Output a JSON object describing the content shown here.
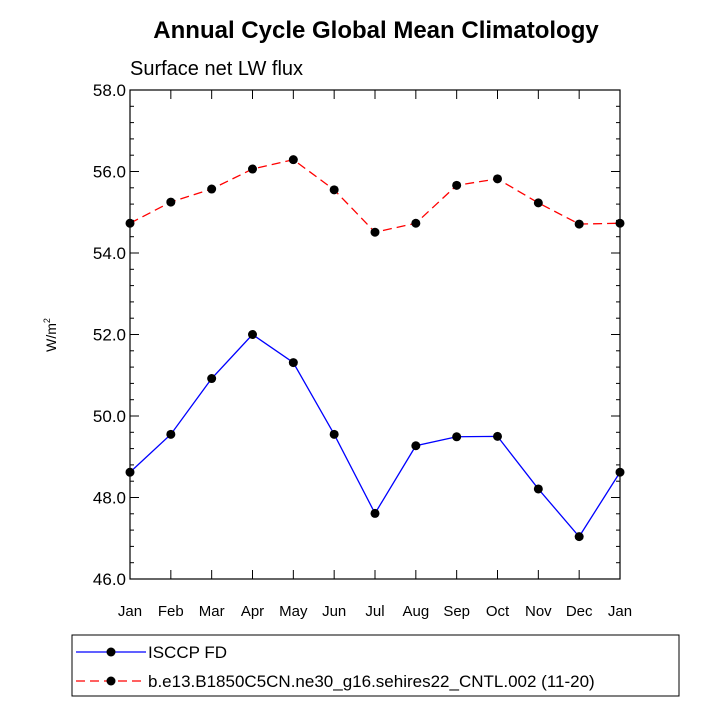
{
  "chart_data": {
    "type": "line",
    "title": "Annual Cycle Global Mean Climatology",
    "subtitle": "Surface net LW flux",
    "xlabel": "",
    "ylabel_base": "W/m",
    "ylabel_sup": "2",
    "categories": [
      "Jan",
      "Feb",
      "Mar",
      "Apr",
      "May",
      "Jun",
      "Jul",
      "Aug",
      "Sep",
      "Oct",
      "Nov",
      "Dec",
      "Jan"
    ],
    "ylim": [
      46.0,
      58.0
    ],
    "yticks": [
      "46.0",
      "48.0",
      "50.0",
      "52.0",
      "54.0",
      "56.0",
      "58.0"
    ],
    "ytick_values": [
      46,
      48,
      50,
      52,
      54,
      56,
      58
    ],
    "grid": false,
    "legend_position": "bottom",
    "series": [
      {
        "name": "ISCCP FD",
        "color": "#0000ff",
        "dash": "solid",
        "values": [
          48.62,
          49.55,
          50.92,
          52.0,
          51.31,
          49.55,
          47.61,
          49.27,
          49.49,
          49.5,
          48.21,
          47.04,
          48.62
        ]
      },
      {
        "name": "b.e13.B1850C5CN.ne30_g16.sehires22_CNTL.002 (11-20)",
        "color": "#ff0000",
        "dash": "dashed",
        "values": [
          54.73,
          55.25,
          55.57,
          56.06,
          56.29,
          55.55,
          54.51,
          54.73,
          55.66,
          55.82,
          55.23,
          54.71,
          54.73
        ]
      }
    ]
  }
}
